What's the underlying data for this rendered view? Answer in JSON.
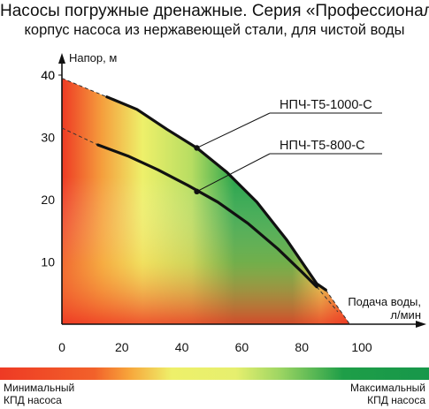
{
  "header": {
    "title": "Насосы погружные дренажные. Серия «Профессионал»",
    "subtitle": "корпус насоса из нержавеющей стали, для чистой воды"
  },
  "legend": {
    "min_line1": "Минимальный",
    "min_line2": "КПД насоса",
    "max_line1": "Максимальный",
    "max_line2": "КПД насоса",
    "colors": {
      "low": "#ee3a24",
      "mid": "#eef06a",
      "high": "#17974a"
    }
  },
  "chart_data": {
    "type": "line",
    "title": "",
    "xlabel_line1": "Подача воды,",
    "xlabel_line2": "л/мин",
    "ylabel": "Напор, м",
    "xlim": [
      0,
      100
    ],
    "ylim": [
      0,
      40
    ],
    "x_ticks": [
      0,
      20,
      40,
      60,
      80,
      100
    ],
    "y_ticks": [
      10,
      20,
      30,
      40
    ],
    "series": [
      {
        "name": "НПЧ-Т5-1000-С",
        "points": [
          [
            15,
            36.5
          ],
          [
            25,
            34.5
          ],
          [
            35,
            31.3
          ],
          [
            45,
            28.3
          ],
          [
            55,
            24.4
          ],
          [
            65,
            19.6
          ],
          [
            75,
            13.5
          ],
          [
            85,
            6.5
          ],
          [
            88,
            5.5
          ]
        ],
        "marker": [
          45,
          28.3
        ],
        "extrapolation_start": [
          0,
          39.5
        ],
        "extrapolation_end": [
          96,
          0
        ]
      },
      {
        "name": "НПЧ-Т5-800-С",
        "points": [
          [
            12,
            28.8
          ],
          [
            22,
            27
          ],
          [
            32,
            24.8
          ],
          [
            42,
            22.3
          ],
          [
            52,
            19.6
          ],
          [
            62,
            16.2
          ],
          [
            72,
            12.1
          ],
          [
            80,
            8.4
          ],
          [
            85,
            6
          ]
        ],
        "marker": [
          45,
          21.3
        ],
        "extrapolation_start": [
          0,
          31.5
        ],
        "extrapolation_end": [
          92,
          2
        ]
      }
    ]
  }
}
